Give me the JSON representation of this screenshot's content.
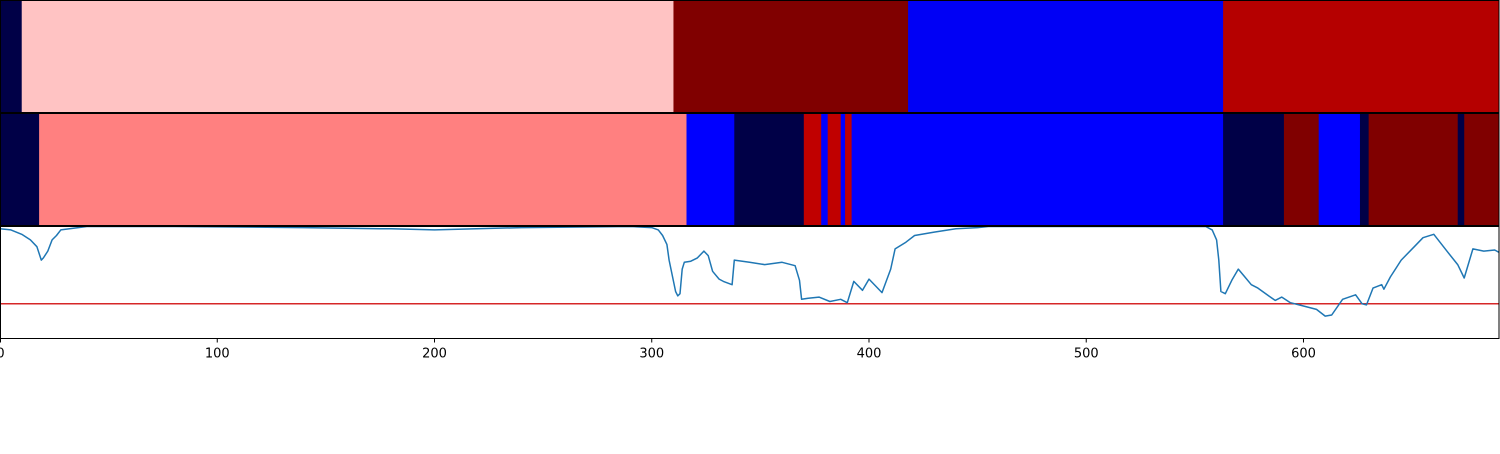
{
  "chart_data": [
    {
      "type": "heatmap",
      "title": "",
      "xlabel": "",
      "ylabel": "",
      "xlim": [
        0,
        690
      ],
      "segments": [
        {
          "start": 0,
          "end": 10,
          "color": "#000047"
        },
        {
          "start": 10,
          "end": 310,
          "color": "#ffc3c3"
        },
        {
          "start": 310,
          "end": 418,
          "color": "#800000"
        },
        {
          "start": 418,
          "end": 563,
          "color": "#0000f5"
        },
        {
          "start": 563,
          "end": 690,
          "color": "#b50000"
        }
      ]
    },
    {
      "type": "heatmap",
      "title": "",
      "xlabel": "",
      "ylabel": "",
      "xlim": [
        0,
        690
      ],
      "segments": [
        {
          "start": 0,
          "end": 18,
          "color": "#000047"
        },
        {
          "start": 18,
          "end": 316,
          "color": "#ff8080"
        },
        {
          "start": 316,
          "end": 338,
          "color": "#0000ff"
        },
        {
          "start": 338,
          "end": 370,
          "color": "#000047"
        },
        {
          "start": 370,
          "end": 378,
          "color": "#c00000"
        },
        {
          "start": 378,
          "end": 381,
          "color": "#0000ff"
        },
        {
          "start": 381,
          "end": 387,
          "color": "#c00000"
        },
        {
          "start": 387,
          "end": 389,
          "color": "#0000ff"
        },
        {
          "start": 389,
          "end": 392,
          "color": "#c00000"
        },
        {
          "start": 392,
          "end": 563,
          "color": "#0000ff"
        },
        {
          "start": 563,
          "end": 591,
          "color": "#000047"
        },
        {
          "start": 591,
          "end": 607,
          "color": "#800000"
        },
        {
          "start": 607,
          "end": 626,
          "color": "#0000ff"
        },
        {
          "start": 626,
          "end": 630,
          "color": "#000047"
        },
        {
          "start": 630,
          "end": 671,
          "color": "#800000"
        },
        {
          "start": 671,
          "end": 674,
          "color": "#000047"
        },
        {
          "start": 674,
          "end": 690,
          "color": "#800000"
        }
      ]
    },
    {
      "type": "line",
      "title": "",
      "xlabel": "",
      "ylabel": "",
      "xlim": [
        0,
        690
      ],
      "ylim": [
        0,
        1
      ],
      "threshold": {
        "y": 0.31,
        "color": "#d62728"
      },
      "x_ticks": [
        "0",
        "100",
        "200",
        "300",
        "400",
        "500",
        "600"
      ],
      "x_tick_values": [
        0,
        100,
        200,
        300,
        400,
        500,
        600
      ],
      "series": [
        {
          "color": "#1f77b4",
          "x": [
            0,
            5,
            10,
            14,
            17,
            19,
            20,
            22,
            24,
            26,
            28,
            40,
            80,
            140,
            175,
            180,
            200,
            240,
            290,
            300,
            303,
            305,
            307,
            308,
            311,
            312,
            313,
            314,
            315,
            318,
            321,
            324,
            326,
            328,
            331,
            333,
            337,
            338,
            345,
            352,
            360,
            366,
            368,
            369,
            372,
            377,
            382,
            387,
            390,
            393,
            397,
            400,
            406,
            410,
            412,
            417,
            421,
            430,
            440,
            450,
            455,
            520,
            555,
            558,
            560,
            561,
            562,
            564,
            567,
            570,
            573,
            576,
            579,
            584,
            587,
            590,
            594,
            598,
            602,
            606,
            610,
            613,
            618,
            624,
            627,
            629,
            632,
            636,
            637,
            640,
            645,
            651,
            655,
            660,
            666,
            671,
            674,
            678,
            683,
            688,
            690
          ],
          "y": [
            0.98,
            0.97,
            0.93,
            0.88,
            0.82,
            0.7,
            0.72,
            0.78,
            0.88,
            0.92,
            0.97,
            1.0,
            1.0,
            0.99,
            0.98,
            0.98,
            0.97,
            0.99,
            1.0,
            0.99,
            0.97,
            0.92,
            0.84,
            0.7,
            0.42,
            0.38,
            0.4,
            0.62,
            0.68,
            0.69,
            0.72,
            0.78,
            0.74,
            0.6,
            0.53,
            0.51,
            0.48,
            0.7,
            0.68,
            0.66,
            0.68,
            0.65,
            0.52,
            0.35,
            0.36,
            0.37,
            0.33,
            0.35,
            0.32,
            0.51,
            0.43,
            0.53,
            0.41,
            0.62,
            0.8,
            0.86,
            0.92,
            0.95,
            0.98,
            0.99,
            1.0,
            1.0,
            1.0,
            0.97,
            0.88,
            0.7,
            0.42,
            0.4,
            0.52,
            0.62,
            0.55,
            0.48,
            0.45,
            0.38,
            0.34,
            0.37,
            0.32,
            0.3,
            0.28,
            0.26,
            0.2,
            0.21,
            0.35,
            0.39,
            0.31,
            0.3,
            0.45,
            0.48,
            0.44,
            0.55,
            0.7,
            0.82,
            0.9,
            0.93,
            0.78,
            0.66,
            0.54,
            0.8,
            0.78,
            0.79,
            0.77
          ]
        }
      ]
    }
  ]
}
